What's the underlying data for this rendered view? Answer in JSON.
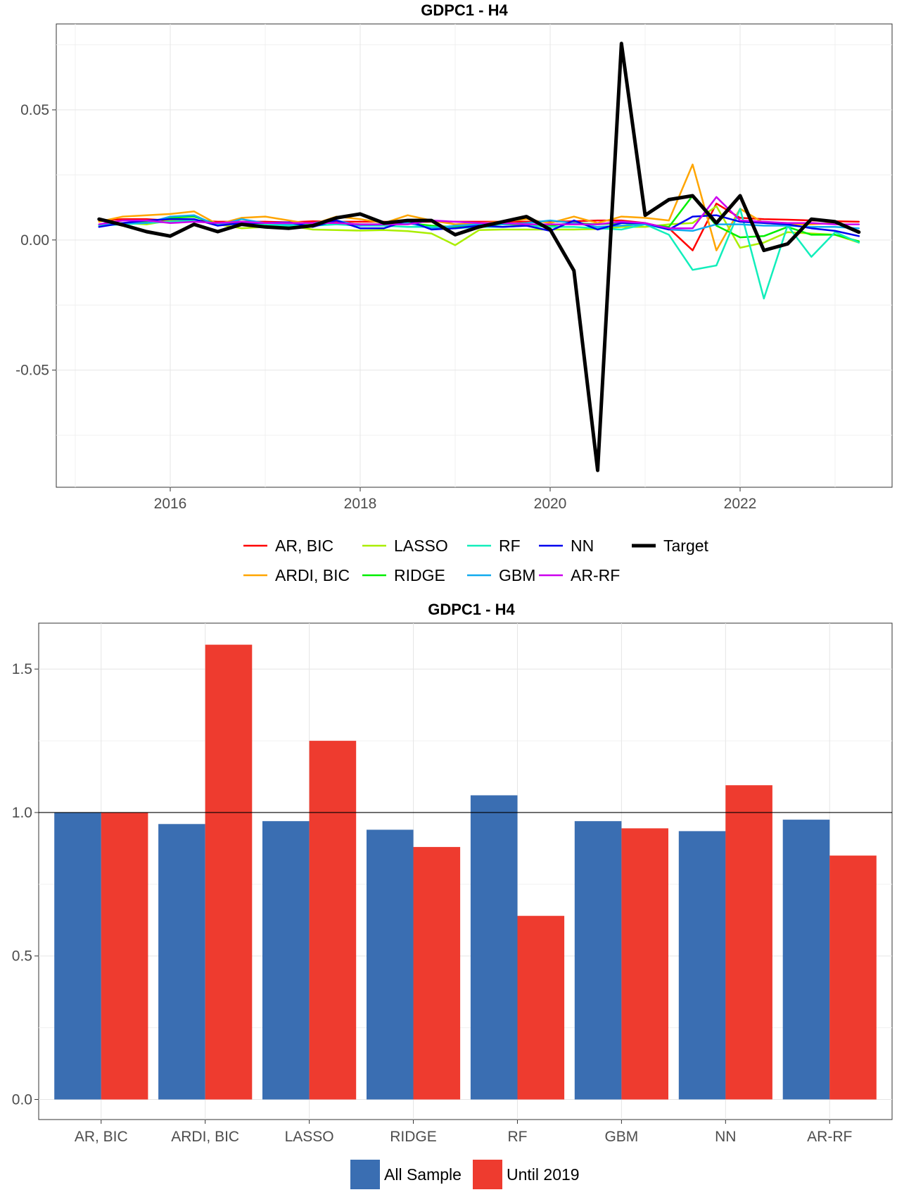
{
  "chart_data": [
    {
      "type": "line",
      "title": "GDPC1 - H4",
      "xlabel": "",
      "ylabel": "",
      "xlim": [
        2014.8,
        2023.6
      ],
      "ylim": [
        -0.095,
        0.083
      ],
      "x_ticks": [
        2016,
        2018,
        2020,
        2022
      ],
      "x_tick_labels": [
        "2016",
        "2018",
        "2020",
        "2022"
      ],
      "y_ticks": [
        -0.05,
        0.0,
        0.05
      ],
      "y_tick_labels": [
        "-0.05",
        "0.00",
        "0.05"
      ],
      "grid": true,
      "legend_position": "bottom",
      "x": [
        2015.25,
        2015.5,
        2015.75,
        2016.0,
        2016.25,
        2016.5,
        2016.75,
        2017.0,
        2017.25,
        2017.5,
        2017.75,
        2018.0,
        2018.25,
        2018.5,
        2018.75,
        2019.0,
        2019.25,
        2019.5,
        2019.75,
        2020.0,
        2020.25,
        2020.5,
        2020.75,
        2021.0,
        2021.25,
        2021.5,
        2021.75,
        2022.0,
        2022.25,
        2022.5,
        2022.75,
        2023.0,
        2023.25
      ],
      "series": [
        {
          "name": "AR, BIC",
          "color": "#ff0000",
          "width": 2.5,
          "values": [
            0.0075,
            0.008,
            0.008,
            0.0075,
            0.0075,
            0.007,
            0.007,
            0.007,
            0.0068,
            0.0072,
            0.007,
            0.007,
            0.007,
            0.0068,
            0.007,
            0.007,
            0.007,
            0.007,
            0.007,
            0.007,
            0.0072,
            0.0075,
            0.0075,
            0.0065,
            0.0045,
            -0.004,
            0.014,
            0.0085,
            0.008,
            0.0078,
            0.0075,
            0.0072,
            0.007
          ]
        },
        {
          "name": "ARDI, BIC",
          "color": "#ffa500",
          "width": 2.5,
          "values": [
            0.007,
            0.009,
            0.0095,
            0.01,
            0.011,
            0.006,
            0.0085,
            0.009,
            0.0075,
            0.006,
            0.009,
            0.008,
            0.0065,
            0.0095,
            0.0075,
            0.006,
            0.0065,
            0.007,
            0.008,
            0.0065,
            0.009,
            0.0065,
            0.009,
            0.0085,
            0.0075,
            0.029,
            -0.004,
            0.012,
            0.0065,
            0.006,
            0.006,
            0.0065,
            0.0035
          ]
        },
        {
          "name": "LASSO",
          "color": "#aaee00",
          "width": 2.5,
          "values": [
            0.0055,
            0.0065,
            0.006,
            0.0075,
            0.0075,
            0.006,
            0.0045,
            0.005,
            0.0055,
            0.004,
            0.0038,
            0.0036,
            0.0038,
            0.0034,
            0.0025,
            -0.002,
            0.0038,
            0.004,
            0.004,
            0.004,
            0.004,
            0.0042,
            0.005,
            0.005,
            0.006,
            0.0065,
            0.013,
            -0.003,
            -0.001,
            0.003,
            0.0025,
            0.002,
            -0.001
          ]
        },
        {
          "name": "RIDGE",
          "color": "#00ee00",
          "width": 2.5,
          "values": [
            0.0055,
            0.0065,
            0.007,
            0.0085,
            0.009,
            0.006,
            0.0065,
            0.006,
            0.0055,
            0.0065,
            0.0065,
            0.006,
            0.006,
            0.0065,
            0.0055,
            0.005,
            0.0055,
            0.006,
            0.006,
            0.0055,
            0.0065,
            0.006,
            0.0065,
            0.006,
            0.005,
            0.017,
            0.0055,
            0.001,
            0.0015,
            0.005,
            0.002,
            0.002,
            -0.0005
          ]
        },
        {
          "name": "RF",
          "color": "#11eebb",
          "width": 2.5,
          "values": [
            0.0055,
            0.006,
            0.0065,
            0.007,
            0.0075,
            0.006,
            0.006,
            0.006,
            0.0055,
            0.0055,
            0.006,
            0.0055,
            0.0055,
            0.005,
            0.005,
            0.0045,
            0.005,
            0.005,
            0.0055,
            0.005,
            0.005,
            0.0045,
            0.004,
            0.006,
            0.002,
            -0.0115,
            -0.0098,
            0.012,
            -0.0225,
            0.0055,
            -0.0065,
            0.003,
            -0.001
          ]
        },
        {
          "name": "GBM",
          "color": "#11aaee",
          "width": 2.5,
          "values": [
            0.006,
            0.0065,
            0.0065,
            0.009,
            0.0095,
            0.0055,
            0.008,
            0.0065,
            0.006,
            0.0065,
            0.0075,
            0.0055,
            0.006,
            0.0065,
            0.0045,
            0.0055,
            0.006,
            0.006,
            0.0065,
            0.0075,
            0.0065,
            0.005,
            0.0055,
            0.006,
            0.004,
            0.0035,
            0.006,
            0.006,
            0.0055,
            0.0055,
            0.005,
            0.005,
            0.0045
          ]
        },
        {
          "name": "NN",
          "color": "#0000ee",
          "width": 2.5,
          "values": [
            0.005,
            0.0065,
            0.0075,
            0.008,
            0.008,
            0.0055,
            0.0065,
            0.0065,
            0.0068,
            0.005,
            0.0075,
            0.0045,
            0.0045,
            0.0075,
            0.004,
            0.0045,
            0.0055,
            0.005,
            0.0055,
            0.0035,
            0.0075,
            0.004,
            0.0065,
            0.0065,
            0.004,
            0.009,
            0.0095,
            0.007,
            0.0065,
            0.006,
            0.0045,
            0.0035,
            0.0015
          ]
        },
        {
          "name": "AR-RF",
          "color": "#cc00ee",
          "width": 2.5,
          "values": [
            0.006,
            0.0075,
            0.0075,
            0.0065,
            0.007,
            0.0065,
            0.007,
            0.0065,
            0.0065,
            0.0065,
            0.0065,
            0.006,
            0.006,
            0.006,
            0.0075,
            0.007,
            0.0065,
            0.0065,
            0.006,
            0.006,
            0.006,
            0.006,
            0.007,
            0.0065,
            0.0045,
            0.0045,
            0.0165,
            0.0075,
            0.007,
            0.0065,
            0.0065,
            0.006,
            0.006
          ]
        },
        {
          "name": "Target",
          "color": "#000000",
          "width": 5,
          "values": [
            0.008,
            0.0058,
            0.0032,
            0.0015,
            0.006,
            0.0032,
            0.006,
            0.005,
            0.0045,
            0.0055,
            0.0085,
            0.01,
            0.0065,
            0.0075,
            0.0075,
            0.002,
            0.005,
            0.007,
            0.009,
            0.004,
            -0.0118,
            -0.0885,
            0.0755,
            0.0095,
            0.0155,
            0.017,
            0.0065,
            0.017,
            -0.004,
            -0.0015,
            0.008,
            0.007,
            0.003
          ]
        }
      ]
    },
    {
      "type": "bar",
      "title": "GDPC1 - H4",
      "xlabel": "",
      "ylabel": "",
      "ylim": [
        -0.07,
        1.66
      ],
      "y_ticks": [
        0.0,
        0.5,
        1.0,
        1.5
      ],
      "y_tick_labels": [
        "0.0",
        "0.5",
        "1.0",
        "1.5"
      ],
      "reference_line": 1.0,
      "grid": true,
      "legend_position": "bottom",
      "categories": [
        "AR, BIC",
        "ARDI, BIC",
        "LASSO",
        "RIDGE",
        "RF",
        "GBM",
        "NN",
        "AR-RF"
      ],
      "series": [
        {
          "name": "All Sample",
          "color": "#3a6eb2",
          "values": [
            1.0,
            0.96,
            0.97,
            0.94,
            1.06,
            0.97,
            0.935,
            0.975
          ]
        },
        {
          "name": "Until 2019",
          "color": "#ee3b2f",
          "values": [
            1.0,
            1.585,
            1.25,
            0.88,
            0.64,
            0.945,
            1.095,
            0.85
          ]
        }
      ]
    }
  ]
}
